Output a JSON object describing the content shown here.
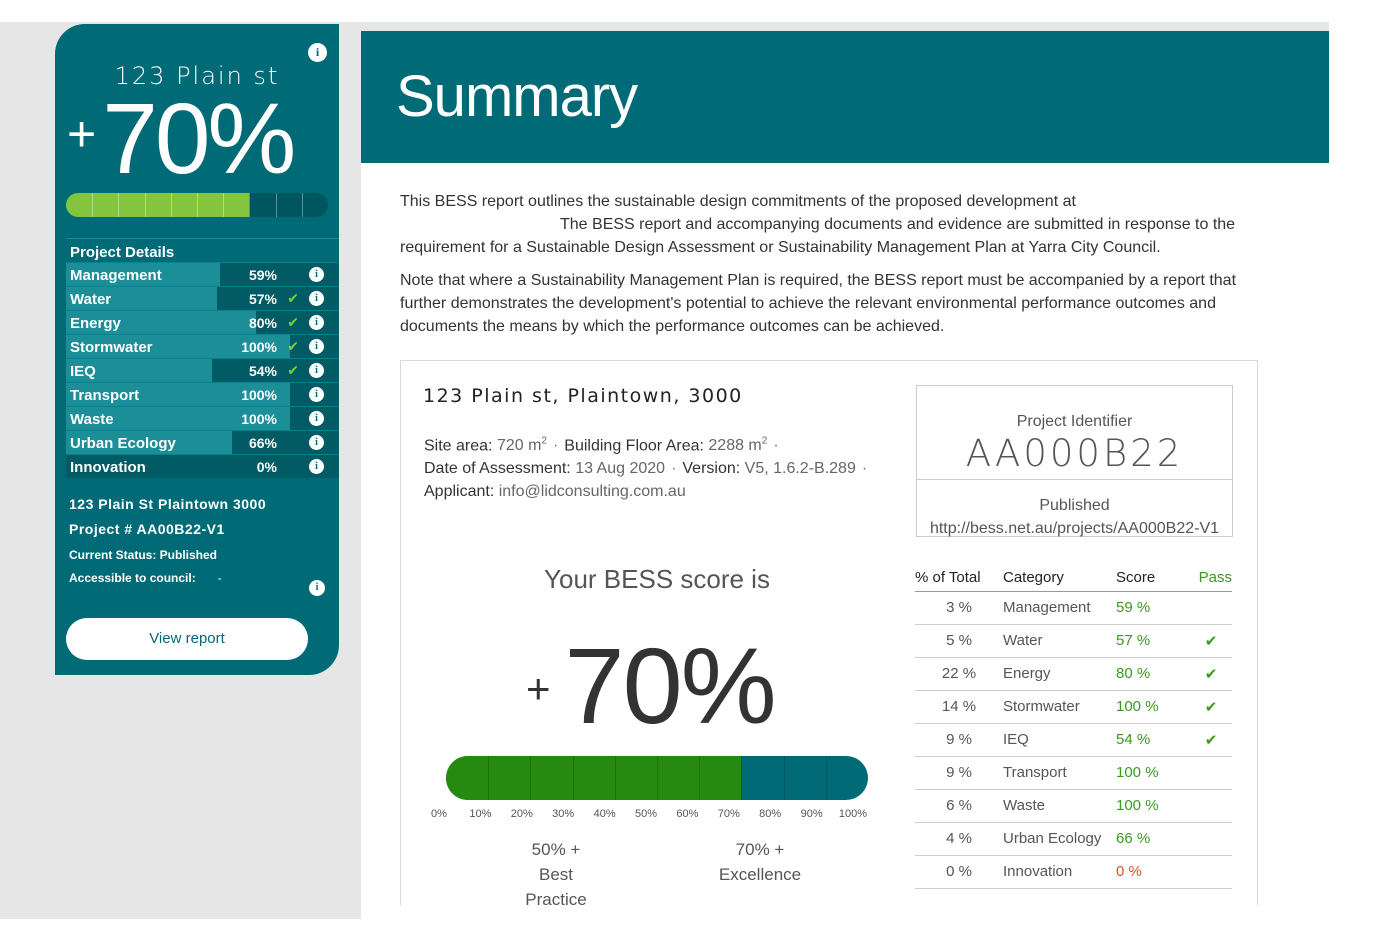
{
  "sidebar": {
    "address": "123 Plain st",
    "score_plus": "+",
    "score_value": "70%",
    "score_fraction": 0.7,
    "details_title": "Project Details",
    "items": [
      {
        "label": "Management",
        "value": "59%",
        "pass": "",
        "fraction": 0.59
      },
      {
        "label": "Water",
        "value": "57%",
        "pass": "✔",
        "fraction": 0.57
      },
      {
        "label": "Energy",
        "value": "80%",
        "pass": "✔",
        "fraction": 0.8
      },
      {
        "label": "Stormwater",
        "value": "100%",
        "pass": "✔",
        "fraction": 1.0
      },
      {
        "label": "IEQ",
        "value": "54%",
        "pass": "✔",
        "fraction": 0.54
      },
      {
        "label": "Transport",
        "value": "100%",
        "pass": "",
        "fraction": 1.0
      },
      {
        "label": "Waste",
        "value": "100%",
        "pass": "",
        "fraction": 1.0
      },
      {
        "label": "Urban Ecology",
        "value": "66%",
        "pass": "",
        "fraction": 0.66
      },
      {
        "label": "Innovation",
        "value": "0%",
        "pass": "",
        "fraction": 0.0
      }
    ],
    "meta_address": "123 Plain St Plaintown 3000",
    "meta_project": "Project # AA00B22-V1",
    "meta_status": "Current Status: Published",
    "meta_access_label": "Accessible to council:",
    "meta_access_value": "-",
    "view_button": "View report"
  },
  "info_glyph": "i",
  "header": {
    "title": "Summary"
  },
  "intro": {
    "p1_a": "This BESS report outlines the sustainable design commitments of the proposed development at",
    "p1_b": "The BESS report and accompanying documents and evidence are submitted in response to the requirement for a Sustainable Design Assessment or Sustainability Management Plan at Yarra City Council.",
    "p2": "Note that where a Sustainability Management Plan is required, the BESS report must be accompanied by a report that further demonstrates the development's potential to achieve the relevant environmental performance outcomes and documents the means by which the performance outcomes can be achieved."
  },
  "project": {
    "full_address": "123 Plain st, Plaintown, 3000",
    "site_area_label": "Site area:",
    "site_area_value": "720 m",
    "site_area_sup": "2",
    "floor_area_label": "Building Floor Area:",
    "floor_area_value": "2288 m",
    "floor_area_sup": "2",
    "date_label": "Date of Assessment:",
    "date_value": "13 Aug 2020",
    "version_label": "Version:",
    "version_value": "V5, 1.6.2-B.289",
    "applicant_label": "Applicant:",
    "applicant_value": "info@lidconsulting.com.au",
    "separator": "·"
  },
  "identifier": {
    "title": "Project Identifier",
    "code": "AA000B22",
    "status": "Published",
    "url": "http://bess.net.au/projects/AA000B22-V1"
  },
  "score": {
    "heading": "Your BESS score is",
    "plus": "+",
    "value": "70%",
    "fraction": 0.7,
    "ticks": [
      "0%",
      "10%",
      "20%",
      "30%",
      "40%",
      "50%",
      "60%",
      "70%",
      "80%",
      "90%",
      "100%"
    ],
    "best_practice_value": "50% +",
    "best_practice_label": "Best Practice",
    "excellence_value": "70% +",
    "excellence_label": "Excellence"
  },
  "table": {
    "headers": [
      "% of Total",
      "Category",
      "Score",
      "Pass"
    ],
    "rows": [
      {
        "total": "3 %",
        "category": "Management",
        "score": "59 %",
        "pass": ""
      },
      {
        "total": "5 %",
        "category": "Water",
        "score": "57 %",
        "pass": "✔"
      },
      {
        "total": "22 %",
        "category": "Energy",
        "score": "80 %",
        "pass": "✔"
      },
      {
        "total": "14 %",
        "category": "Stormwater",
        "score": "100 %",
        "pass": "✔"
      },
      {
        "total": "9 %",
        "category": "IEQ",
        "score": "54 %",
        "pass": "✔"
      },
      {
        "total": "9 %",
        "category": "Transport",
        "score": "100 %",
        "pass": ""
      },
      {
        "total": "6 %",
        "category": "Waste",
        "score": "100 %",
        "pass": ""
      },
      {
        "total": "4 %",
        "category": "Urban Ecology",
        "score": "66 %",
        "pass": ""
      },
      {
        "total": "0 %",
        "category": "Innovation",
        "score": "0 %",
        "pass": ""
      }
    ]
  },
  "colors": {
    "brand_teal": "#006b76",
    "bar_green": "#84c53f",
    "gauge_green": "#278a10",
    "pass_green": "#3a9a1c",
    "zero_red": "#e05024"
  }
}
